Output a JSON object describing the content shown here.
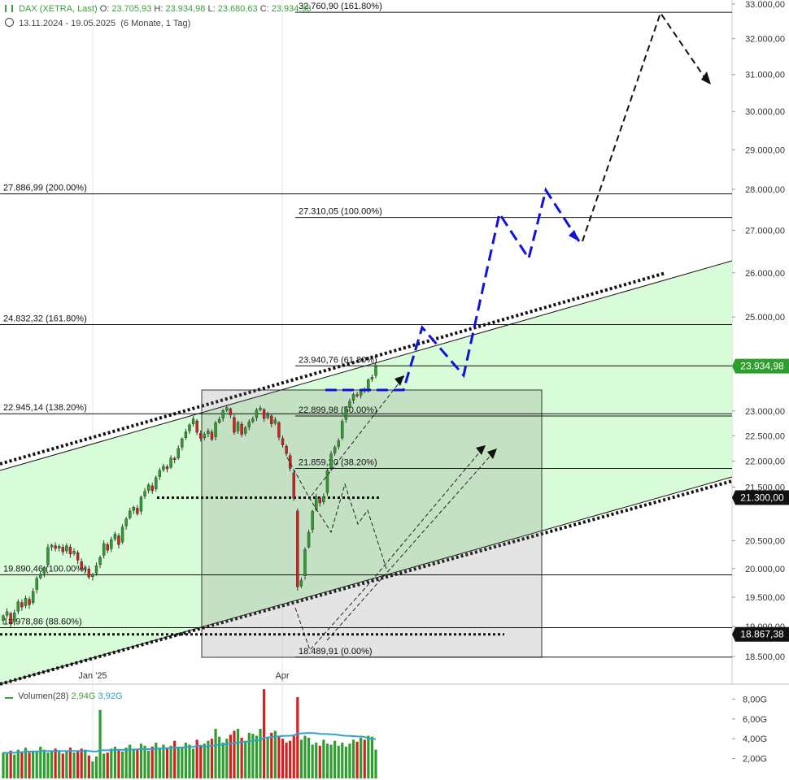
{
  "header": {
    "symbol": "DAX (XETRA, Last)",
    "open_label": "O:",
    "open": "23.705,93",
    "high_label": "H:",
    "high": "23.934,98",
    "low_label": "L:",
    "low": "23.680,63",
    "close_label": "C:",
    "close": "23.934,98",
    "range": "13.11.2024 - 19.05.2025",
    "period": "(6 Monate, 1 Tag)"
  },
  "volume_legend": {
    "label": "Volumen(28)",
    "value1": "2,94G",
    "value2": "3,92G"
  },
  "colors": {
    "up": "#2e9e2e",
    "down": "#d62020",
    "channel_fill": "#d8fcd8",
    "box_fill": "#7a7a7a",
    "blue_path": "#1010e0",
    "volume_ma": "#2fa3d0"
  },
  "chart_data": {
    "type": "candlestick",
    "y_axis": {
      "min": 18100,
      "max": 33000,
      "scale": "log",
      "ticks": [
        "33.000,00",
        "32.000,00",
        "31.000,00",
        "30.000,00",
        "29.000,00",
        "28.000,00",
        "27.000,00",
        "26.000,00",
        "25.000,00",
        "23.000,00",
        "22.500,00",
        "22.000,00",
        "21.500,00",
        "20.500,00",
        "20.000,00",
        "19.500,00",
        "19.000,00",
        "18.500,00"
      ],
      "tick_values": [
        33000,
        32000,
        31000,
        30000,
        29000,
        28000,
        27000,
        26000,
        25000,
        23000,
        22500,
        22000,
        21500,
        20500,
        20000,
        19500,
        19000,
        18500
      ]
    },
    "x_axis": {
      "ticks": [
        "Jan '25",
        "Apr"
      ]
    },
    "price_badges": [
      {
        "label": "23.934,98",
        "value": 23934.98,
        "color": "#2e9e2e"
      },
      {
        "label": "21.300,00",
        "value": 21300,
        "color": "#111111"
      },
      {
        "label": "18.867,38",
        "value": 18867.38,
        "color": "#111111"
      }
    ],
    "fib_levels": [
      {
        "label": "32.760,90 (161.80%)",
        "value": 32760.9,
        "from": "right-group"
      },
      {
        "label": "27.886,99 (200.00%)",
        "value": 27886.99,
        "from": "left"
      },
      {
        "label": "27.310,05 (100.00%)",
        "value": 27310.05,
        "from": "right-group"
      },
      {
        "label": "24.832,32 (161.80%)",
        "value": 24832.32,
        "from": "left"
      },
      {
        "label": "23.940,76 (61.80%)",
        "value": 23940.76,
        "from": "right-group"
      },
      {
        "label": "22.945,14 (138.20%)",
        "value": 22945.14,
        "from": "left"
      },
      {
        "label": "22.899,98 (50.00%)",
        "value": 22899.98,
        "from": "right-group"
      },
      {
        "label": "21.859,20 (38.20%)",
        "value": 21859.2,
        "from": "right-group"
      },
      {
        "label": "19.890,46 (100.00%)",
        "value": 19890.46,
        "from": "left"
      },
      {
        "label": "18.978,86 (88.60%)",
        "value": 18978.86,
        "from": "left"
      },
      {
        "label": "18.489,91 (0.00%)",
        "value": 18489.91,
        "from": "right-group"
      }
    ],
    "closes": [
      19180,
      19250,
      19050,
      19230,
      19420,
      19330,
      19480,
      19370,
      19600,
      19830,
      19900,
      20020,
      20380,
      20420,
      20360,
      20400,
      20300,
      20410,
      20260,
      20310,
      20150,
      19980,
      20020,
      19850,
      19900,
      20050,
      20200,
      20450,
      20330,
      20520,
      20620,
      20430,
      20750,
      20900,
      21050,
      21120,
      21000,
      21310,
      21420,
      21540,
      21430,
      21680,
      21820,
      21900,
      21850,
      22060,
      22030,
      22250,
      22440,
      22580,
      22720,
      22840,
      22570,
      22450,
      22530,
      22600,
      22430,
      22760,
      22830,
      23010,
      23070,
      22920,
      22570,
      22770,
      22530,
      22660,
      22780,
      22840,
      23020,
      23060,
      22850,
      22930,
      22740,
      22820,
      22470,
      22320,
      22150,
      21860,
      21290,
      19680,
      19790,
      20340,
      20650,
      21040,
      21310,
      21200,
      21320,
      21820,
      22140,
      22270,
      22400,
      22790,
      23050,
      23200,
      23340,
      23310,
      23430,
      23410,
      23650,
      23700,
      23935
    ],
    "volumes": [
      2.6,
      2.5,
      2.8,
      2.4,
      2.9,
      2.7,
      3.1,
      2.6,
      2.8,
      2.7,
      3.2,
      2.9,
      2.6,
      2.8,
      3.0,
      2.7,
      2.5,
      2.8,
      3.1,
      2.6,
      2.7,
      3.0,
      2.9,
      2.3,
      1.7,
      2.2,
      6.9,
      2.5,
      2.6,
      3.0,
      3.2,
      2.8,
      2.7,
      3.1,
      3.4,
      2.9,
      3.0,
      3.5,
      3.3,
      2.8,
      3.2,
      3.6,
      3.1,
      3.4,
      3.0,
      3.3,
      3.8,
      3.2,
      3.1,
      3.6,
      3.4,
      3.0,
      3.9,
      3.3,
      3.5,
      3.8,
      4.0,
      5.0,
      4.2,
      3.6,
      4.0,
      4.4,
      4.8,
      5.0,
      4.1,
      3.8,
      4.6,
      4.5,
      4.3,
      5.0,
      9.0,
      4.2,
      4.6,
      4.8,
      4.2,
      4.0,
      3.6,
      3.8,
      4.4,
      8.2,
      3.9,
      4.3,
      4.1,
      3.4,
      3.6,
      3.3,
      3.9,
      3.5,
      3.4,
      3.8,
      3.3,
      3.6,
      3.2,
      3.5,
      3.9,
      3.7,
      4.1,
      3.9,
      4.3,
      4.2,
      2.9
    ],
    "volume_axis": {
      "ticks": [
        "8,00G",
        "6,00G",
        "4,00G",
        "2,00G"
      ],
      "tick_values": [
        8,
        6,
        4,
        2
      ]
    }
  }
}
